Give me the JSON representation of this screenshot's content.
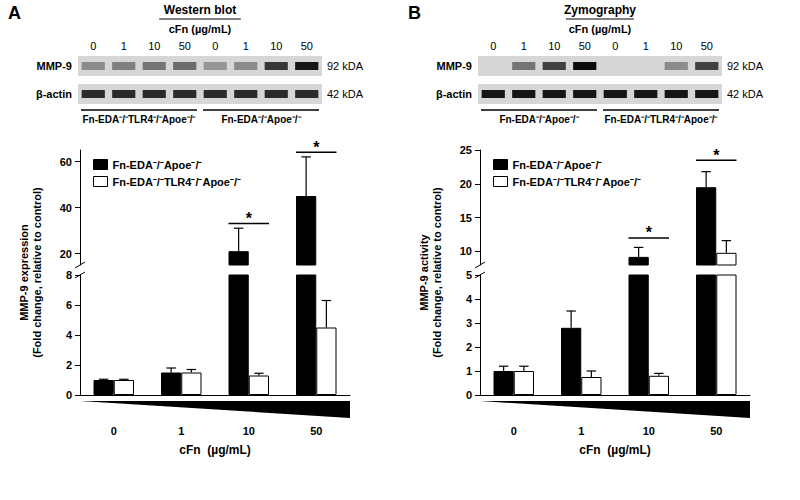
{
  "panel_labels": [
    "A",
    "B"
  ],
  "blots": [
    {
      "title": "Western blot",
      "concentration_label": "cFn (µg/mL)",
      "groups": [
        {
          "label": "Fn-EDA⁻/⁻TLR4⁻/⁻Apoe⁻/⁻",
          "lanes": [
            "0",
            "1",
            "10",
            "50"
          ]
        },
        {
          "label": "Fn-EDA⁻/⁻Apoe⁻/⁻",
          "lanes": [
            "0",
            "1",
            "10",
            "50"
          ]
        }
      ],
      "rows": [
        {
          "label": "MMP-9",
          "size": "92 kDA",
          "intensity": [
            0.35,
            0.4,
            0.45,
            0.5,
            0.3,
            0.35,
            0.75,
            0.9
          ]
        },
        {
          "label": "β-actin",
          "size": "42 kDA",
          "intensity": [
            0.8,
            0.8,
            0.8,
            0.8,
            0.8,
            0.8,
            0.8,
            0.8
          ]
        }
      ]
    },
    {
      "title": "Zymography",
      "concentration_label": "cFn (µg/mL)",
      "groups": [
        {
          "label": "Fn-EDA⁻/⁻Apoe⁻/⁻",
          "lanes": [
            "0",
            "1",
            "10",
            "50"
          ]
        },
        {
          "label": "Fn-EDA⁻/⁻TLR4⁻/⁻Apoe⁻/⁻",
          "lanes": [
            "0",
            "1",
            "10",
            "50"
          ]
        }
      ],
      "rows": [
        {
          "label": "MMP-9",
          "size": "92 kDA",
          "intensity": [
            0.0,
            0.45,
            0.7,
            0.95,
            0.0,
            0.0,
            0.35,
            0.7
          ]
        },
        {
          "label": "β-actin",
          "size": "42 kDA",
          "intensity": [
            0.9,
            0.9,
            0.9,
            0.9,
            0.9,
            0.9,
            0.9,
            0.9
          ]
        }
      ]
    }
  ],
  "chart_data": [
    {
      "type": "bar",
      "y_label": [
        "MMP-9 expression",
        "(Fold change, relative to control)"
      ],
      "x_label": "cFn  (µg/mL)",
      "categories": [
        "0",
        "1",
        "10",
        "50"
      ],
      "series": [
        {
          "name": "Fn-EDA⁻/⁻Apoe⁻/⁻",
          "color": "#000000",
          "values": [
            1,
            1.5,
            21,
            45
          ],
          "errors": [
            0.05,
            0.3,
            10,
            17
          ]
        },
        {
          "name": "Fn-EDA⁻/⁻TLR4⁻/⁻Apoe⁻/⁻",
          "color": "#ffffff",
          "values": [
            1,
            1.5,
            1.3,
            4.5
          ],
          "errors": [
            0.05,
            0.2,
            0.15,
            1.8
          ]
        }
      ],
      "ylim": [
        0,
        65
      ],
      "yticks": [
        0,
        2,
        4,
        6,
        8,
        20,
        40,
        60
      ],
      "y_break": [
        8,
        15
      ],
      "legend": "upper-left",
      "annotations": [
        {
          "text": "*",
          "category": "10",
          "y": 33
        },
        {
          "text": "*",
          "category": "50",
          "y": 64
        }
      ]
    },
    {
      "type": "bar",
      "y_label": [
        "MMP-9 activity",
        "(Fold change, relative to control)"
      ],
      "x_label": "cFn  (µg/mL)",
      "categories": [
        "0",
        "1",
        "10",
        "50"
      ],
      "series": [
        {
          "name": "Fn-EDA⁻/⁻Apoe⁻/⁻",
          "color": "#000000",
          "values": [
            1,
            2.8,
            9.2,
            19.5
          ],
          "errors": [
            0.2,
            0.7,
            1.4,
            2.3
          ]
        },
        {
          "name": "Fn-EDA⁻/⁻TLR4⁻/⁻Apoe⁻/⁻",
          "color": "#ffffff",
          "values": [
            1,
            0.75,
            0.8,
            9.8
          ],
          "errors": [
            0.2,
            0.25,
            0.1,
            1.8
          ]
        }
      ],
      "ylim": [
        0,
        25
      ],
      "yticks": [
        0,
        1,
        2,
        3,
        4,
        5,
        10,
        15,
        20,
        25
      ],
      "y_break": [
        5,
        8
      ],
      "legend": "upper-left",
      "annotations": [
        {
          "text": "*",
          "category": "10",
          "y": 12
        },
        {
          "text": "*",
          "category": "50",
          "y": 23.5
        }
      ]
    }
  ]
}
